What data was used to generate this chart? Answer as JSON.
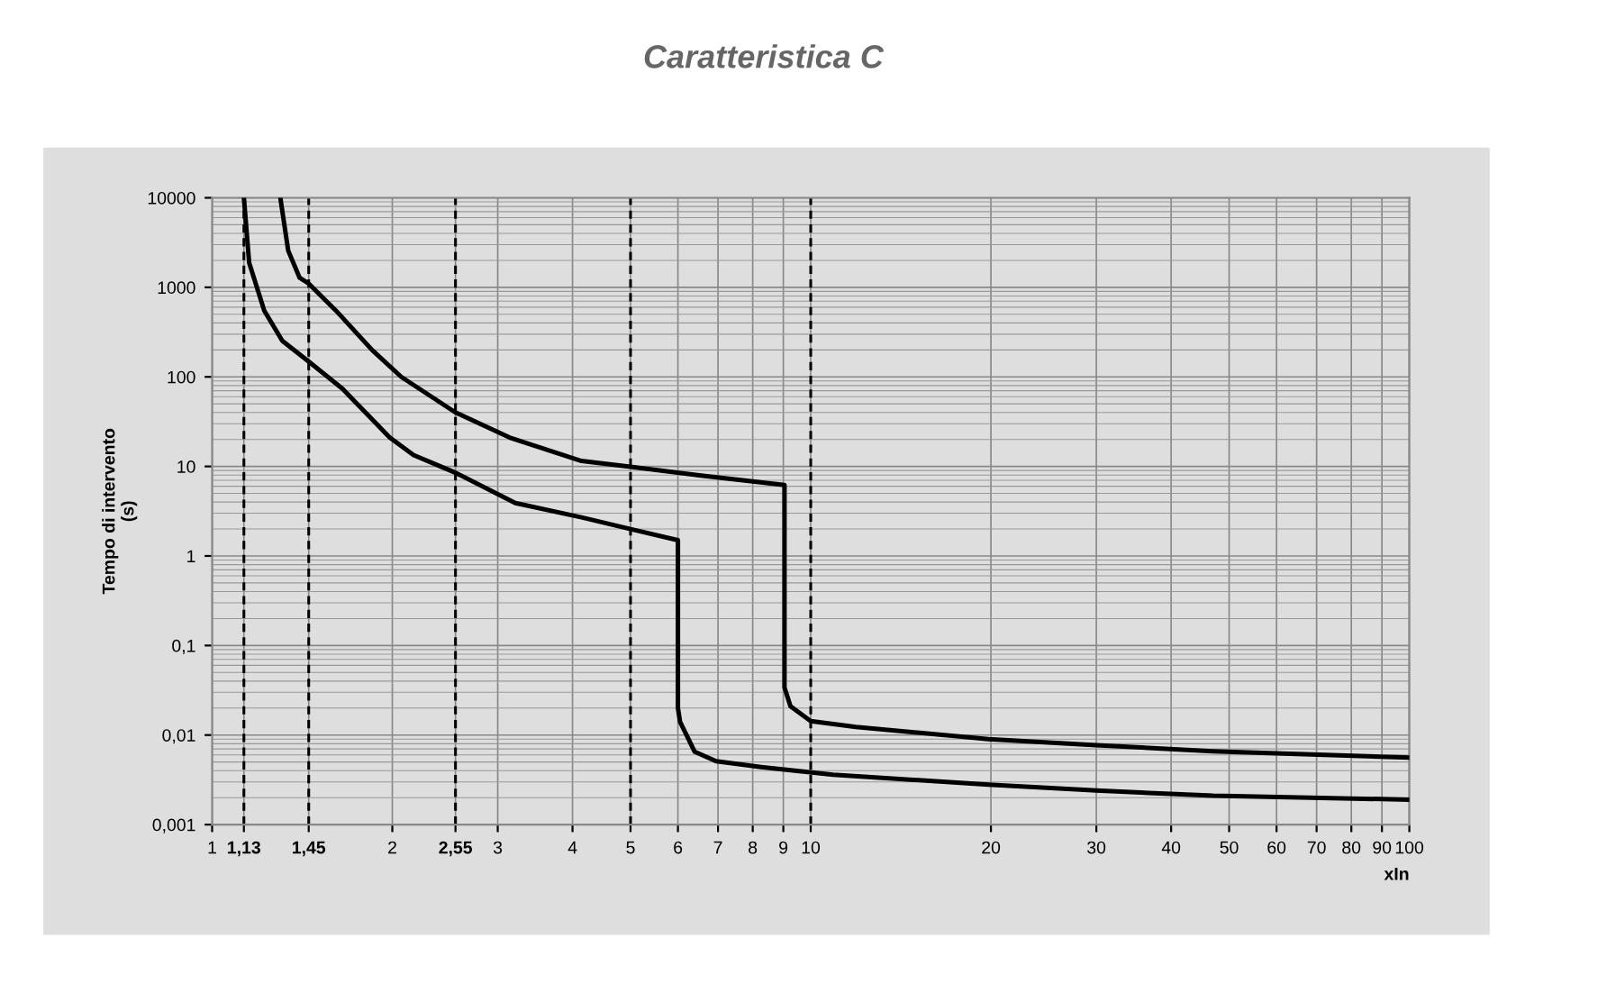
{
  "chart_data": {
    "type": "line",
    "title": "Caratteristica C",
    "xlabel": "xIn",
    "ylabel": "Tempo di intervento\n(s)",
    "log": "xy",
    "grid": true,
    "legend": false,
    "marker": "none",
    "line_style": "solid",
    "xlim": [
      1,
      100
    ],
    "ylim": [
      0.001,
      10000
    ],
    "xticks": [
      1,
      2,
      3,
      4,
      6,
      7,
      8,
      9,
      20,
      30,
      40,
      50,
      60,
      70,
      80,
      90,
      100
    ],
    "yticks": [
      {
        "value": 0.001,
        "label": "0,001"
      },
      {
        "value": 0.01,
        "label": "0,01"
      },
      {
        "value": 0.1,
        "label": "0,1"
      },
      1,
      10,
      100,
      1000,
      10000
    ],
    "ref_lines": [
      {
        "axis": "x",
        "value": 1.13,
        "label": "1,13",
        "line_style": "dashed",
        "color": "#000000"
      },
      {
        "axis": "x",
        "value": 1.45,
        "label": "1,45",
        "line_style": "dashed",
        "color": "#000000"
      },
      {
        "axis": "x",
        "value": 2.55,
        "label": "2,55",
        "line_style": "dashed",
        "color": "#000000"
      },
      {
        "axis": "x",
        "value": 5,
        "label": "5",
        "line_style": "dashed",
        "color": "#000000"
      },
      {
        "axis": "x",
        "value": 10,
        "label": "10",
        "line_style": "dashed",
        "color": "#000000"
      }
    ],
    "series": [
      {
        "color": "#000000",
        "x": [
          1.13,
          1.153,
          1.222,
          1.31,
          1.45,
          1.65,
          1.98,
          2.17,
          2.55,
          3.21,
          4.14,
          5,
          6.0,
          6.0,
          6.05,
          6.4,
          6.95,
          8.26,
          10.9,
          19.8,
          30,
          47,
          100
        ],
        "values": [
          10000,
          1890,
          550,
          253,
          148,
          74,
          21,
          13.4,
          8.5,
          3.9,
          2.7,
          2.0,
          1.5,
          0.02,
          0.014,
          0.0065,
          0.0051,
          0.0044,
          0.0036,
          0.0028,
          0.0024,
          0.0021,
          0.0019
        ]
      },
      {
        "color": "#000000",
        "x": [
          1.3,
          1.34,
          1.4,
          1.45,
          1.61,
          1.85,
          2.07,
          2.55,
          3.14,
          4.14,
          5,
          6.56,
          9.04,
          9.04,
          9.25,
          10,
          11.9,
          19.8,
          30,
          47,
          100
        ],
        "values": [
          10000,
          2570,
          1280,
          1100,
          550,
          200,
          100,
          40,
          21,
          11.5,
          9.9,
          7.9,
          6.2,
          0.034,
          0.021,
          0.0143,
          0.0123,
          0.009,
          0.0077,
          0.0066,
          0.0056
        ]
      }
    ]
  }
}
